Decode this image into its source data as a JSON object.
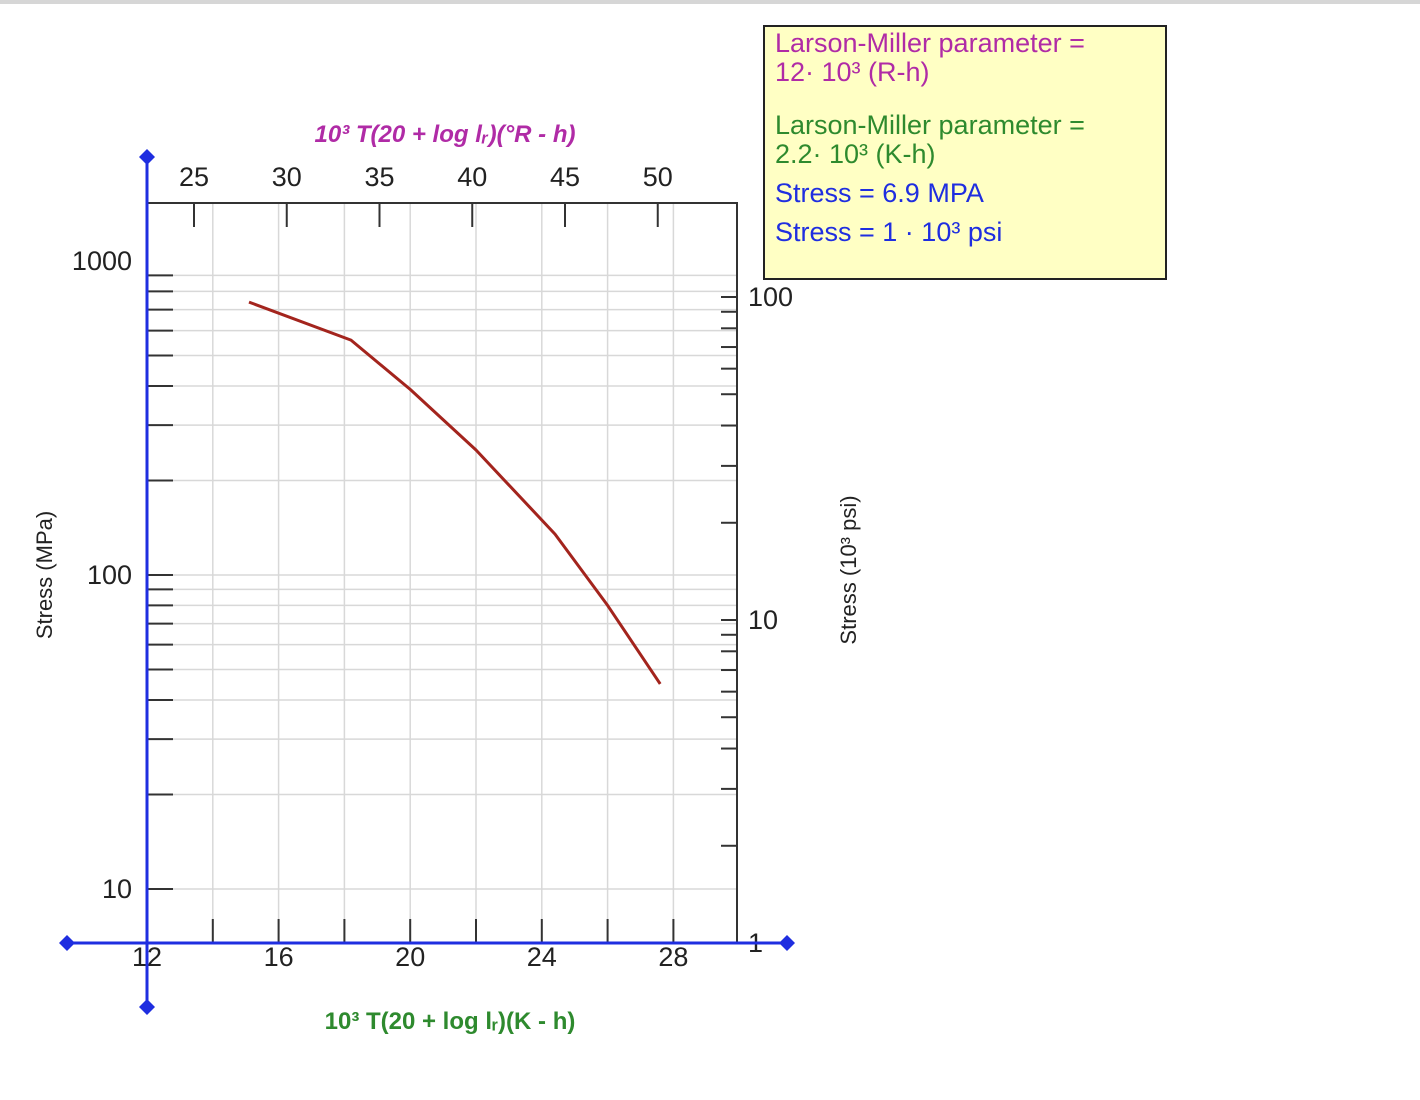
{
  "chart_data": {
    "type": "line",
    "x_bottom": {
      "label": "10³ T(20 + log lᵣ)(K - h)",
      "ticks": [
        12,
        16,
        20,
        24,
        28
      ],
      "range": [
        12,
        30
      ],
      "color": "#2e8a2e"
    },
    "x_top": {
      "label": "10³ T(20 + log lᵣ)(°R - h)",
      "ticks": [
        25,
        30,
        35,
        40,
        45,
        50
      ],
      "range": [
        22,
        54
      ],
      "color": "#b02ba6"
    },
    "y_left": {
      "label": "Stress (MPa)",
      "scale": "log",
      "ticks": [
        10,
        100,
        1000
      ],
      "range": [
        6,
        1600
      ]
    },
    "y_right": {
      "label": "Stress (10³ psi)",
      "scale": "log",
      "ticks": [
        1,
        10,
        100
      ]
    },
    "series": [
      {
        "name": "",
        "color": "#a3241d",
        "x": [
          15.1,
          18.2,
          20.0,
          22.0,
          24.4,
          26.0,
          27.6
        ],
        "y": [
          740,
          560,
          390,
          250,
          135,
          80,
          45
        ]
      }
    ],
    "grid": true
  },
  "legend": {
    "lines": [
      {
        "text": "Larson-Miller parameter =",
        "color": "#b02ba6"
      },
      {
        "text": "12· 10³ (R-h)",
        "color": "#b02ba6"
      },
      {
        "text": "Larson-Miller parameter =",
        "color": "#2e8a2e"
      },
      {
        "text": "2.2· 10³ (K-h)",
        "color": "#2e8a2e"
      },
      {
        "text": "Stress = 6.9 MPA",
        "color": "#1f2ee0"
      },
      {
        "text": "Stress = 1 · 10³ psi",
        "color": "#1f2ee0"
      }
    ]
  },
  "colors": {
    "axis_handle": "#1f2ee0",
    "frame": "#333333",
    "grid": "#d8d8d8"
  }
}
